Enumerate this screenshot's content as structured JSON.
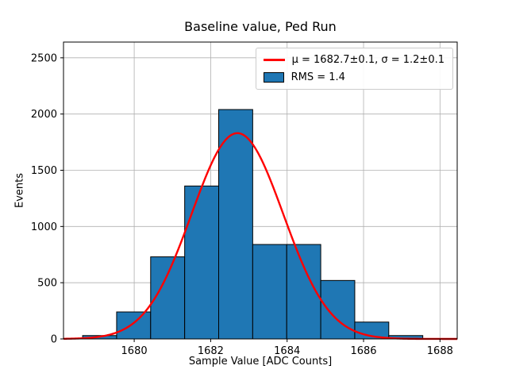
{
  "chart_data": {
    "type": "bar",
    "subtype": "histogram-with-gaussian-fit",
    "title": "Baseline value, Ped Run",
    "xlabel": "Sample Value [ADC Counts]",
    "ylabel": "Events",
    "xlim": [
      1678.15,
      1688.45
    ],
    "ylim": [
      0,
      2640
    ],
    "xticks": [
      1680,
      1682,
      1684,
      1686,
      1688
    ],
    "yticks": [
      0,
      500,
      1000,
      1500,
      2000,
      2500
    ],
    "grid": true,
    "grid_color": "#b0b0b0",
    "bin_edges": [
      1678.65,
      1679.54,
      1680.43,
      1681.32,
      1682.21,
      1683.1,
      1683.99,
      1684.88,
      1685.77,
      1686.66,
      1687.55
    ],
    "counts": [
      30,
      240,
      730,
      1360,
      2040,
      840,
      840,
      520,
      150,
      30
    ],
    "bar_color": "#1f77b4",
    "bar_edge_color": "#000000",
    "fit": {
      "mu": 1682.7,
      "sigma": 1.2,
      "amplitude": 1830,
      "color": "#ff0000"
    },
    "legend": {
      "fit_label": "μ = 1682.7±0.1, σ = 1.2±0.1",
      "rms_label": "RMS = 1.4",
      "position": "upper right"
    }
  }
}
